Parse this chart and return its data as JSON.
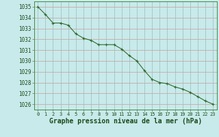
{
  "x": [
    0,
    1,
    2,
    3,
    4,
    5,
    6,
    7,
    8,
    9,
    10,
    11,
    12,
    13,
    14,
    15,
    16,
    17,
    18,
    19,
    20,
    21,
    22,
    23
  ],
  "y": [
    1035.0,
    1034.3,
    1033.5,
    1033.5,
    1033.3,
    1032.5,
    1032.1,
    1031.9,
    1031.5,
    1031.5,
    1031.5,
    1031.1,
    1030.5,
    1030.0,
    1029.1,
    1028.3,
    1028.0,
    1027.9,
    1027.6,
    1027.4,
    1027.1,
    1026.7,
    1026.3,
    1026.0
  ],
  "line_color": "#2d6a2d",
  "marker": "+",
  "marker_size": 3,
  "bg_color": "#c8eaea",
  "grid_color_h": "#cc9999",
  "grid_color_v": "#99bbbb",
  "xlabel": "Graphe pression niveau de la mer (hPa)",
  "xlabel_color": "#1a4a1a",
  "tick_color": "#1a4a1a",
  "ylim_min": 1025.5,
  "ylim_max": 1035.5,
  "xlim_min": -0.5,
  "xlim_max": 23.5,
  "xlabel_fontsize": 7
}
